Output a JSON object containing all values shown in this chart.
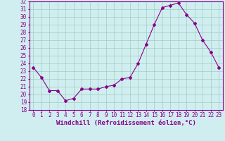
{
  "x": [
    0,
    1,
    2,
    3,
    4,
    5,
    6,
    7,
    8,
    9,
    10,
    11,
    12,
    13,
    14,
    15,
    16,
    17,
    18,
    19,
    20,
    21,
    22,
    23
  ],
  "y": [
    23.5,
    22.2,
    20.5,
    20.5,
    19.2,
    19.5,
    20.7,
    20.7,
    20.7,
    21.0,
    21.2,
    22.0,
    22.2,
    24.0,
    26.5,
    29.0,
    31.2,
    31.5,
    31.8,
    30.3,
    29.2,
    27.0,
    25.5,
    23.5
  ],
  "xlim": [
    -0.5,
    23.5
  ],
  "ylim": [
    18,
    32
  ],
  "yticks": [
    18,
    19,
    20,
    21,
    22,
    23,
    24,
    25,
    26,
    27,
    28,
    29,
    30,
    31,
    32
  ],
  "xticks": [
    0,
    1,
    2,
    3,
    4,
    5,
    6,
    7,
    8,
    9,
    10,
    11,
    12,
    13,
    14,
    15,
    16,
    17,
    18,
    19,
    20,
    21,
    22,
    23
  ],
  "xlabel": "Windchill (Refroidissement éolien,°C)",
  "line_color": "#880088",
  "marker": "D",
  "marker_size": 2.0,
  "bg_color": "#d0eef0",
  "grid_color": "#a0ccc0",
  "tick_label_fontsize": 5.5,
  "xlabel_fontsize": 6.5
}
